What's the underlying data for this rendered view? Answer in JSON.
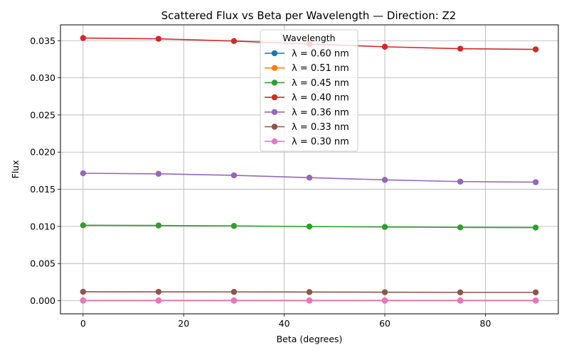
{
  "chart_data": {
    "type": "line",
    "title": "Scattered Flux vs Beta per Wavelength — Direction: Z2",
    "xlabel": "Beta (degrees)",
    "ylabel": "Flux",
    "x": [
      0,
      15,
      30,
      45,
      60,
      75,
      90
    ],
    "xlim": [
      -4.5,
      94.5
    ],
    "ylim": [
      -0.00177,
      0.03713
    ],
    "x_ticks": [
      0,
      20,
      40,
      60,
      80
    ],
    "x_tick_labels": [
      "0",
      "20",
      "40",
      "60",
      "80"
    ],
    "y_ticks": [
      0.0,
      0.005,
      0.01,
      0.015,
      0.02,
      0.025,
      0.03,
      0.035
    ],
    "y_tick_labels": [
      "0.000",
      "0.005",
      "0.010",
      "0.015",
      "0.020",
      "0.025",
      "0.030",
      "0.035"
    ],
    "grid": true,
    "legend": {
      "title": "Wavelength",
      "placement": "top-center"
    },
    "series": [
      {
        "name": "λ = 0.60 nm",
        "color": "#1f77b4",
        "values": [
          1e-05,
          1e-05,
          1e-05,
          1e-05,
          1e-05,
          1e-05,
          1e-05
        ]
      },
      {
        "name": "λ = 0.51 nm",
        "color": "#ff7f0e",
        "values": [
          2e-05,
          2e-05,
          2e-05,
          2e-05,
          2e-05,
          2e-05,
          2e-05
        ]
      },
      {
        "name": "λ = 0.45 nm",
        "color": "#2ca02c",
        "values": [
          0.01015,
          0.01012,
          0.01006,
          0.00998,
          0.00992,
          0.00986,
          0.00984
        ]
      },
      {
        "name": "λ = 0.40 nm",
        "color": "#d62728",
        "values": [
          0.03535,
          0.03525,
          0.03495,
          0.03455,
          0.03418,
          0.03392,
          0.03383
        ]
      },
      {
        "name": "λ = 0.36 nm",
        "color": "#9467bd",
        "values": [
          0.01715,
          0.01708,
          0.01687,
          0.01656,
          0.01626,
          0.01603,
          0.01595
        ]
      },
      {
        "name": "λ = 0.33 nm",
        "color": "#8c564b",
        "values": [
          0.0012,
          0.00119,
          0.00118,
          0.00116,
          0.00114,
          0.00112,
          0.00112
        ]
      },
      {
        "name": "λ = 0.30 nm",
        "color": "#e377c2",
        "values": [
          4e-05,
          4e-05,
          4e-05,
          4e-05,
          4e-05,
          4e-05,
          4e-05
        ]
      }
    ]
  }
}
